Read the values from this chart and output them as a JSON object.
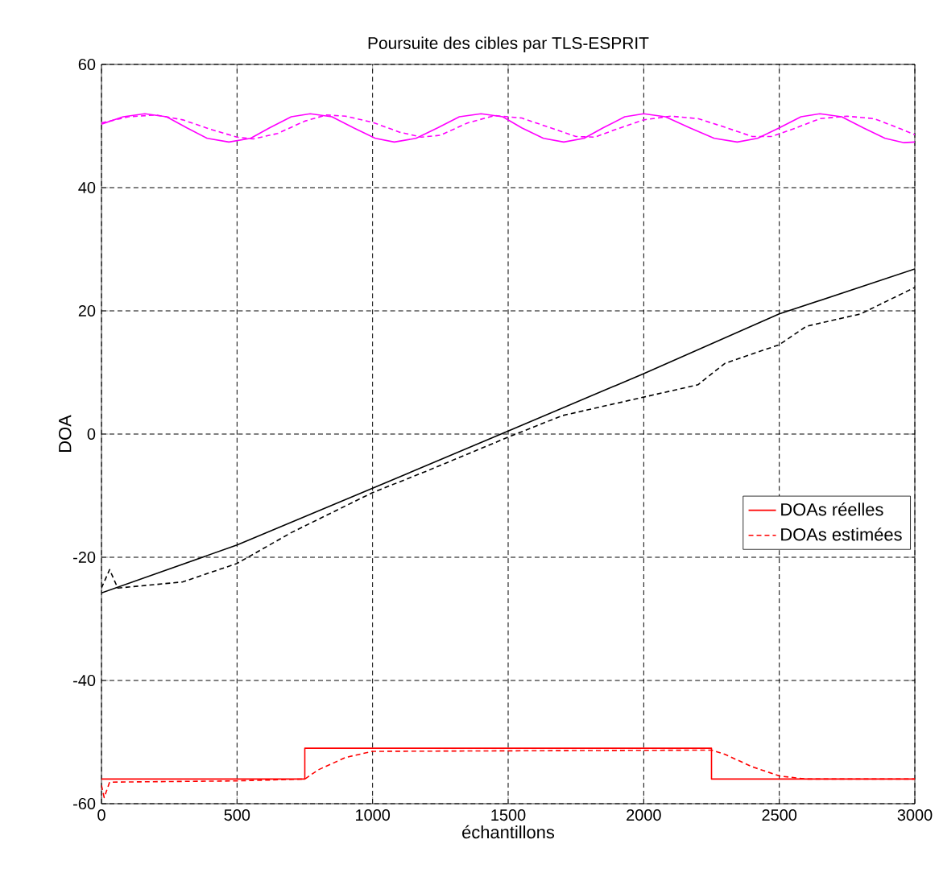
{
  "chart_data": {
    "type": "line",
    "title": "Poursuite des cibles par TLS-ESPRIT",
    "xlabel": "échantillons",
    "ylabel": "DOA",
    "xlim": [
      0,
      3000
    ],
    "ylim": [
      -60,
      60
    ],
    "xticks": [
      0,
      500,
      1000,
      1500,
      2000,
      2500,
      3000
    ],
    "yticks": [
      -60,
      -40,
      -20,
      0,
      20,
      40,
      60
    ],
    "grid": true,
    "legend": "right",
    "series": [
      {
        "name": "DOAs réelles",
        "type": "step",
        "color": "#ff0000",
        "line_style": "solid",
        "x": [
          0,
          750,
          2250,
          3000
        ],
        "values": [
          -56,
          -51,
          -56,
          -56
        ]
      },
      {
        "name": "DOAs estimées",
        "type": "line",
        "color": "#ff0000",
        "line_style": "dashed",
        "x": [
          0,
          10,
          30,
          500,
          750,
          800,
          900,
          1000,
          2250,
          2300,
          2400,
          2500,
          2600,
          3000
        ],
        "values": [
          -57,
          -59,
          -56.5,
          -56.3,
          -56,
          -54.5,
          -52.5,
          -51.5,
          -51.3,
          -52,
          -54,
          -55.5,
          -56,
          -56
        ]
      },
      {
        "type": "line",
        "color": "#ff00ff",
        "line_style": "solid",
        "x": [
          0,
          80,
          160,
          240,
          315,
          390,
          470,
          550,
          620,
          700,
          770,
          850,
          930,
          1010,
          1080,
          1160,
          1240,
          1320,
          1400,
          1480,
          1550,
          1630,
          1705,
          1780,
          1850,
          1930,
          2000,
          2080,
          2170,
          2260,
          2345,
          2420,
          2500,
          2580,
          2650,
          2730,
          2810,
          2890,
          2960,
          3000
        ],
        "values": [
          50.3,
          51.5,
          52,
          51.5,
          49.7,
          48,
          47.4,
          48,
          49.7,
          51.5,
          52,
          51.5,
          49.7,
          48,
          47.4,
          48,
          49.7,
          51.5,
          52,
          51.5,
          49.7,
          48,
          47.4,
          48,
          49.7,
          51.5,
          52,
          51.5,
          49.7,
          48,
          47.4,
          48,
          49.7,
          51.5,
          52,
          51.5,
          49.7,
          48,
          47.3,
          47.4
        ]
      },
      {
        "type": "line",
        "color": "#ff00ff",
        "line_style": "dashed",
        "x": [
          0,
          100,
          200,
          300,
          400,
          500,
          560,
          650,
          750,
          830,
          900,
          1000,
          1100,
          1180,
          1250,
          1350,
          1450,
          1550,
          1650,
          1750,
          1820,
          1900,
          2000,
          2100,
          2200,
          2300,
          2400,
          2470,
          2550,
          2650,
          2750,
          2850,
          2950,
          3000
        ],
        "values": [
          50.5,
          51.5,
          51.8,
          51,
          49.5,
          48.2,
          47.9,
          48.8,
          50.8,
          51.8,
          51.6,
          50.6,
          49,
          48.2,
          48.5,
          50.5,
          51.7,
          51.3,
          49.8,
          48.3,
          48.2,
          49.5,
          51,
          51.6,
          51.2,
          49.8,
          48.3,
          48.3,
          49.5,
          51.2,
          51.6,
          51.2,
          49.5,
          48.6
        ]
      },
      {
        "type": "line",
        "color": "#000000",
        "line_style": "solid",
        "x": [
          0,
          500,
          1000,
          1500,
          2000,
          2500,
          3000
        ],
        "values": [
          -25.8,
          -18,
          -8.8,
          0.5,
          9.8,
          19.5,
          26.8
        ]
      },
      {
        "type": "line",
        "color": "#000000",
        "line_style": "dashed",
        "x": [
          0,
          30,
          60,
          300,
          500,
          700,
          1000,
          1200,
          1500,
          1700,
          2000,
          2200,
          2300,
          2500,
          2600,
          2800,
          3000
        ],
        "values": [
          -25,
          -22,
          -25,
          -24,
          -21,
          -16,
          -9.5,
          -6,
          -0.5,
          3,
          6,
          8,
          11.5,
          14.5,
          17.5,
          19.5,
          23.8
        ]
      }
    ]
  }
}
